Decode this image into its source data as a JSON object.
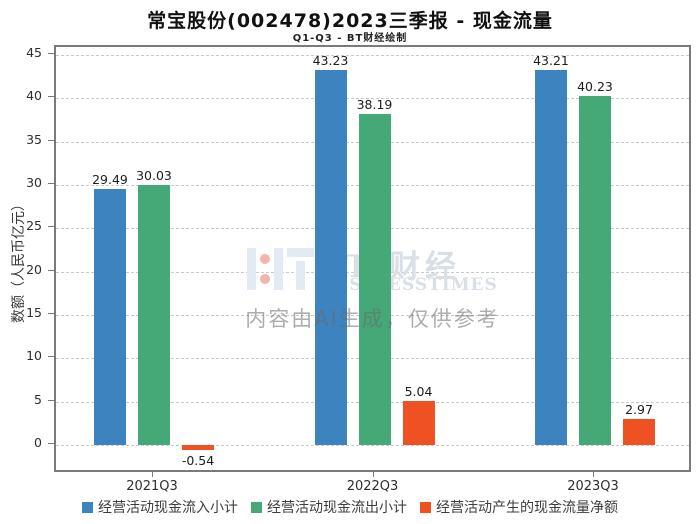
{
  "header": {
    "title": "常宝股份(002478)2023三季报 - 现金流量",
    "subtitle": "Q1-Q3 - BT财经绘制"
  },
  "watermark": {
    "brand": "BT 财经",
    "brand_sub": "BUSINESSTIMES",
    "ai_notice": "内容由AI生成，仅供参考",
    "logo_icon": "bt-bars-logo-icon"
  },
  "chart_data": {
    "type": "bar",
    "title": "常宝股份(002478)2023三季报 - 现金流量",
    "subtitle": "Q1-Q3 - BT财经绘制",
    "ylabel": "数额（人民币亿元）",
    "xlabel": "",
    "categories": [
      "2021Q3",
      "2022Q3",
      "2023Q3"
    ],
    "series": [
      {
        "name": "经营活动现金流入小计",
        "color": "#3c83c0",
        "values": [
          29.49,
          43.23,
          43.21
        ]
      },
      {
        "name": "经营活动现金流出小计",
        "color": "#44a877",
        "values": [
          30.03,
          38.19,
          40.23
        ]
      },
      {
        "name": "经营活动产生的现金流量净额",
        "color": "#ef5123",
        "values": [
          -0.54,
          5.04,
          2.97
        ]
      }
    ],
    "data_labels": [
      [
        "29.49",
        "30.03",
        "-0.54"
      ],
      [
        "43.23",
        "38.19",
        "5.04"
      ],
      [
        "43.21",
        "40.23",
        "2.97"
      ]
    ],
    "yticks": [
      0,
      5,
      10,
      15,
      20,
      25,
      30,
      35,
      40,
      45
    ],
    "ylim": [
      -3.4,
      46
    ],
    "grid": "horizontal-dashed",
    "legend_position": "bottom"
  },
  "colors": {
    "bar_blue": "#3c83c0",
    "bar_green": "#44a877",
    "bar_orange": "#ef5123",
    "gridline": "#c9c9c9",
    "plot_border": "#7a7a7a",
    "watermark_text": "#d9dfe7",
    "watermark_dot": "#f2b5ae",
    "ai_notice_text": "#9a9a9a"
  }
}
